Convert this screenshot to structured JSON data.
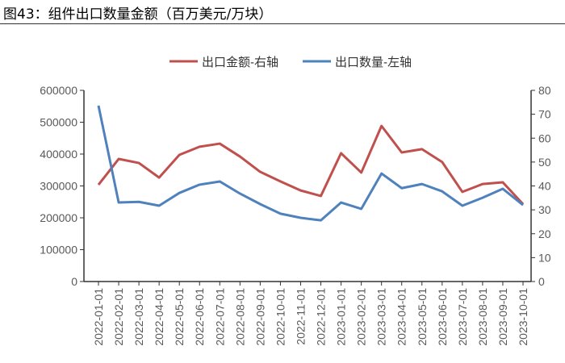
{
  "title": "图43：组件出口数量金额（百万美元/万块）",
  "chart_data": {
    "type": "line",
    "title": "图43：组件出口数量金额（百万美元/万块）",
    "categories": [
      "2022-01-01",
      "2022-02-01",
      "2022-03-01",
      "2022-04-01",
      "2022-05-01",
      "2022-06-01",
      "2022-07-01",
      "2022-08-01",
      "2022-09-01",
      "2022-10-01",
      "2022-11-01",
      "2022-12-01",
      "2023-01-01",
      "2023-02-01",
      "2023-03-01",
      "2023-04-01",
      "2023-05-01",
      "2023-06-01",
      "2023-07-01",
      "2023-08-01",
      "2023-09-01",
      "2023-10-01"
    ],
    "left_axis": {
      "min": 0,
      "max": 600000,
      "ticks": [
        "0",
        "100000",
        "200000",
        "300000",
        "400000",
        "500000",
        "600000"
      ]
    },
    "right_axis": {
      "min": 0,
      "max": 80,
      "ticks": [
        "0",
        "10",
        "20",
        "30",
        "40",
        "50",
        "60",
        "70",
        "80"
      ]
    },
    "legend_position": "top",
    "series": [
      {
        "name": "出口金额-右轴",
        "axis": "right",
        "color": "#c0504d",
        "values": [
          40.5,
          51.3,
          49.6,
          43.5,
          53,
          56.4,
          57.7,
          52.3,
          45.9,
          41.9,
          38.1,
          35.8,
          53.7,
          45.6,
          65.1,
          54,
          55.4,
          50,
          37.5,
          40.8,
          41.5,
          32.4
        ]
      },
      {
        "name": "出口数量-左轴",
        "axis": "left",
        "color": "#4f81bd",
        "values": [
          552000,
          248000,
          250000,
          238000,
          278000,
          304000,
          314000,
          276000,
          243000,
          213000,
          200000,
          192000,
          248000,
          228000,
          339000,
          293000,
          306000,
          283000,
          238000,
          263000,
          291000,
          240000
        ]
      }
    ]
  }
}
